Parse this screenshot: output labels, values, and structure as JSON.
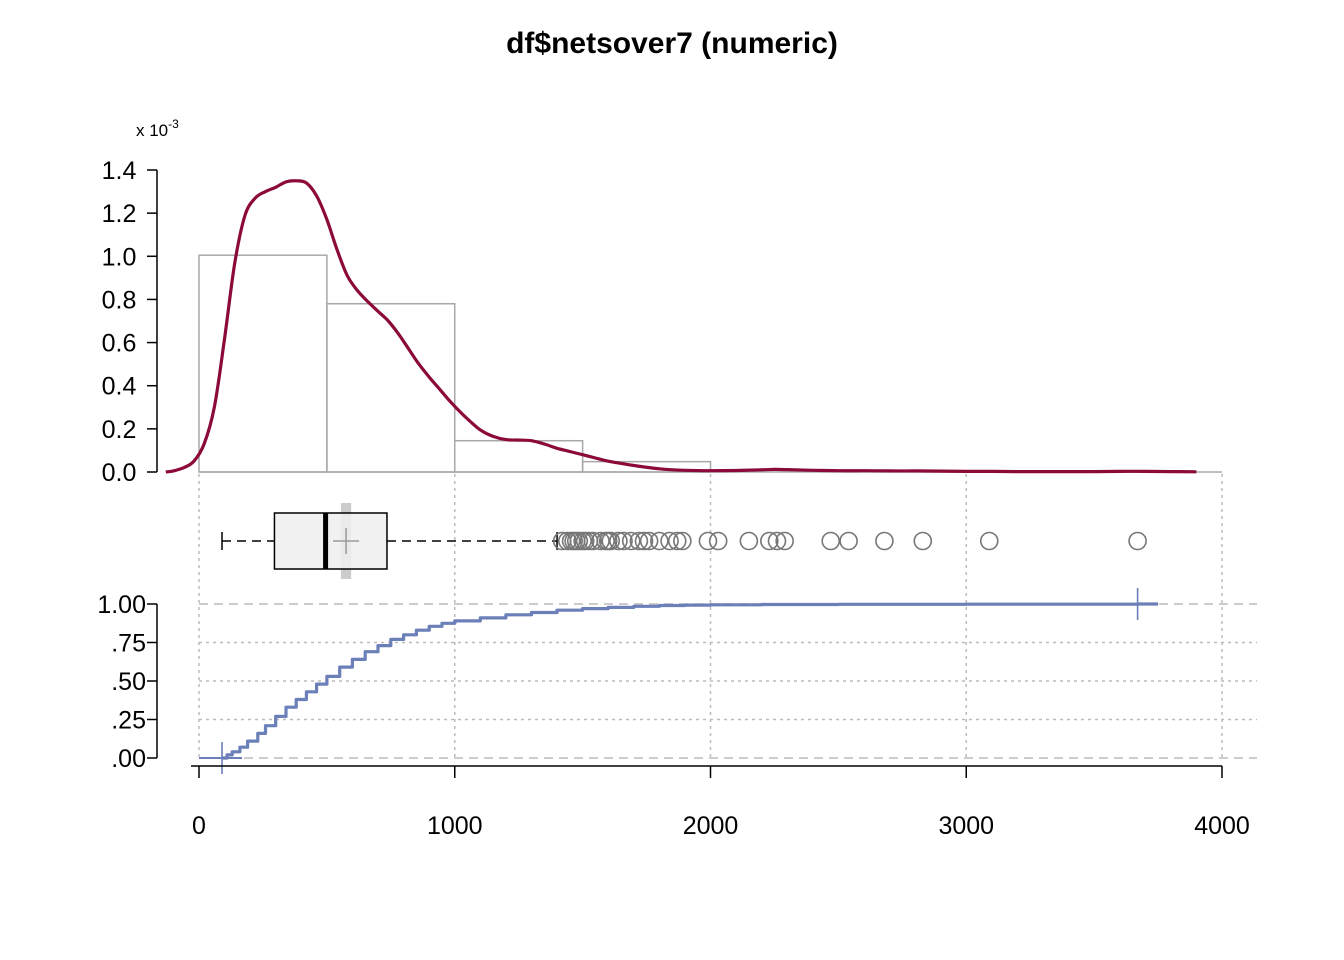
{
  "chart_data": {
    "type": "histogram-density-boxplot-ecdf",
    "title": "df$netsover7 (numeric)",
    "density_multiplier_label": "x 10",
    "density_multiplier_exponent": "-3",
    "colors": {
      "density": "#8B0A3A",
      "ecdf": "#6B7FB8",
      "histogram": "#a8a8a8",
      "outlier": "#777777",
      "grid": "#bbbbbb",
      "box_fill": "#efefef",
      "mean_band": "#cccccc"
    },
    "x_axis": {
      "range": [
        0,
        4000
      ],
      "ticks": [
        0,
        1000,
        2000,
        3000,
        4000
      ],
      "tick_labels": [
        "0",
        "1000",
        "2000",
        "3000",
        "4000"
      ]
    },
    "density_axis": {
      "range": [
        0,
        1.4
      ],
      "ticks": [
        0,
        0.2,
        0.4,
        0.6,
        0.8,
        1.0,
        1.2,
        1.4
      ],
      "tick_labels": [
        "0.0",
        "0.2",
        "0.4",
        "0.6",
        "0.8",
        "1.0",
        "1.2",
        "1.4"
      ]
    },
    "ecdf_axis": {
      "range": [
        0,
        1
      ],
      "ticks": [
        0,
        0.25,
        0.5,
        0.75,
        1
      ],
      "tick_labels": [
        ".00",
        ".25",
        ".50",
        ".75",
        "1.00"
      ]
    },
    "histogram": {
      "breaks": [
        0,
        500,
        1000,
        1500,
        2000,
        2500,
        3000,
        3500,
        4000
      ],
      "density": [
        1.005,
        0.78,
        0.145,
        0.048,
        0.003,
        0.002,
        0.0005,
        0.0005
      ]
    },
    "density_curve": {
      "x": [
        -130,
        -100,
        -60,
        -20,
        20,
        60,
        100,
        140,
        180,
        220,
        260,
        300,
        340,
        380,
        420,
        460,
        500,
        540,
        580,
        620,
        660,
        700,
        740,
        780,
        820,
        860,
        900,
        940,
        980,
        1020,
        1060,
        1100,
        1150,
        1200,
        1250,
        1300,
        1350,
        1400,
        1450,
        1500,
        1550,
        1600,
        1650,
        1700,
        1800,
        1900,
        2000,
        2100,
        2200,
        2250,
        2300,
        2400,
        2500,
        2600,
        2700,
        2800,
        2900,
        3000,
        3100,
        3200,
        3300,
        3400,
        3500,
        3600,
        3700,
        3800,
        3900
      ],
      "y": [
        0.0,
        0.005,
        0.02,
        0.05,
        0.13,
        0.3,
        0.62,
        0.97,
        1.19,
        1.27,
        1.3,
        1.32,
        1.345,
        1.35,
        1.34,
        1.28,
        1.17,
        1.03,
        0.91,
        0.84,
        0.79,
        0.745,
        0.7,
        0.64,
        0.57,
        0.5,
        0.44,
        0.385,
        0.33,
        0.28,
        0.235,
        0.195,
        0.165,
        0.15,
        0.148,
        0.145,
        0.13,
        0.11,
        0.095,
        0.08,
        0.065,
        0.05,
        0.04,
        0.03,
        0.015,
        0.008,
        0.006,
        0.007,
        0.01,
        0.012,
        0.011,
        0.008,
        0.006,
        0.006,
        0.005,
        0.005,
        0.004,
        0.003,
        0.003,
        0.002,
        0.002,
        0.002,
        0.002,
        0.003,
        0.003,
        0.002,
        0.001
      ]
    },
    "boxplot": {
      "whisker_low": 90,
      "q1": 295,
      "median": 495,
      "q3": 735,
      "whisker_high": 1400,
      "mean": 575,
      "mean_band": [
        555,
        595
      ],
      "outliers": [
        1420,
        1440,
        1455,
        1465,
        1475,
        1485,
        1500,
        1510,
        1525,
        1540,
        1570,
        1590,
        1600,
        1610,
        1640,
        1660,
        1690,
        1720,
        1740,
        1760,
        1800,
        1840,
        1870,
        1890,
        1990,
        2030,
        2150,
        2230,
        2260,
        2290,
        2470,
        2540,
        2680,
        2830,
        3090,
        3670
      ]
    },
    "ecdf": {
      "x": [
        90,
        110,
        130,
        160,
        190,
        230,
        260,
        300,
        340,
        380,
        420,
        460,
        500,
        550,
        600,
        650,
        700,
        750,
        800,
        850,
        900,
        950,
        1000,
        1100,
        1200,
        1300,
        1400,
        1500,
        1600,
        1700,
        1800,
        1900,
        2000,
        2200,
        2500,
        3000,
        3670,
        3750
      ],
      "y": [
        0.0,
        0.02,
        0.04,
        0.07,
        0.11,
        0.16,
        0.21,
        0.27,
        0.33,
        0.38,
        0.43,
        0.48,
        0.53,
        0.59,
        0.64,
        0.69,
        0.73,
        0.77,
        0.8,
        0.83,
        0.855,
        0.875,
        0.89,
        0.91,
        0.93,
        0.945,
        0.96,
        0.97,
        0.978,
        0.985,
        0.99,
        0.993,
        0.995,
        0.997,
        0.998,
        0.999,
        1.0,
        1.0
      ],
      "endpoint_markers": [
        90,
        3670
      ]
    }
  }
}
